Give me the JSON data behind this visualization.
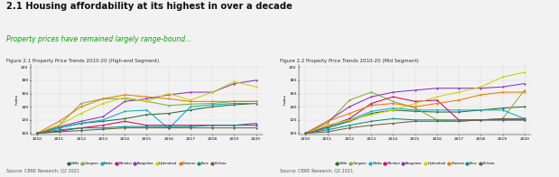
{
  "title": "2.1 Housing affordability at its highest in over a decade",
  "subtitle": "Property prices have remained largely range-bound...",
  "fig1_title": "Figure 2.1 Property Price Trends 2010-20 (High-end Segment)",
  "fig2_title": "Figure 2.2 Property Price Trends 2010-20 (Mid Segment)",
  "source": "Source: CBRE Research, Q2 2021",
  "years": [
    2010,
    2011,
    2012,
    2013,
    2014,
    2015,
    2016,
    2017,
    2018,
    2019,
    2020
  ],
  "cities": [
    "Delhi",
    "Gurgaon",
    "Noida",
    "Mumbai",
    "Bangalore",
    "Hyderabad",
    "Chennai",
    "Pune",
    "Kolkata"
  ],
  "colors": [
    "#2d6a2d",
    "#7db33a",
    "#00b0c8",
    "#d4006e",
    "#8b2fc9",
    "#c8d400",
    "#f07800",
    "#009080",
    "#706040"
  ],
  "high_end": {
    "Delhi": [
      100,
      108,
      115,
      118,
      122,
      128,
      130,
      135,
      140,
      143,
      145
    ],
    "Gurgaon": [
      100,
      112,
      145,
      152,
      152,
      148,
      142,
      144,
      145,
      148,
      148
    ],
    "Noida": [
      100,
      108,
      115,
      120,
      133,
      135,
      107,
      140,
      143,
      145,
      145
    ],
    "Mumbai": [
      100,
      103,
      108,
      112,
      118,
      112,
      112,
      112,
      112,
      112,
      112
    ],
    "Bangalore": [
      100,
      110,
      118,
      125,
      148,
      152,
      158,
      162,
      162,
      175,
      180
    ],
    "Hyderabad": [
      100,
      112,
      130,
      145,
      154,
      148,
      160,
      150,
      162,
      178,
      170
    ],
    "Chennai": [
      100,
      118,
      140,
      152,
      158,
      155,
      152,
      148,
      148,
      148,
      148
    ],
    "Pune": [
      100,
      105,
      108,
      108,
      110,
      110,
      110,
      110,
      112,
      112,
      115
    ],
    "Kolkata": [
      100,
      102,
      104,
      106,
      108,
      108,
      108,
      108,
      108,
      108,
      108
    ]
  },
  "mid_seg": {
    "Delhi": [
      100,
      108,
      118,
      130,
      135,
      133,
      132,
      132,
      135,
      138,
      140
    ],
    "Gurgaon": [
      100,
      115,
      150,
      162,
      148,
      138,
      120,
      118,
      120,
      122,
      165
    ],
    "Noida": [
      100,
      108,
      120,
      133,
      138,
      135,
      135,
      135,
      135,
      135,
      122
    ],
    "Mumbai": [
      100,
      110,
      122,
      145,
      155,
      148,
      150,
      120,
      120,
      120,
      120
    ],
    "Bangalore": [
      100,
      118,
      140,
      155,
      162,
      165,
      168,
      168,
      168,
      170,
      175
    ],
    "Hyderabad": [
      100,
      112,
      120,
      128,
      135,
      145,
      155,
      162,
      170,
      185,
      192
    ],
    "Chennai": [
      100,
      118,
      130,
      142,
      145,
      140,
      145,
      150,
      158,
      162,
      162
    ],
    "Pune": [
      100,
      105,
      112,
      118,
      122,
      120,
      120,
      120,
      120,
      120,
      120
    ],
    "Kolkata": [
      100,
      102,
      108,
      112,
      115,
      118,
      118,
      118,
      120,
      122,
      122
    ]
  },
  "ylim": [
    98,
    205
  ],
  "yticks": [
    100,
    120,
    140,
    160,
    180,
    200
  ],
  "bg_color": "#f2f2f2"
}
